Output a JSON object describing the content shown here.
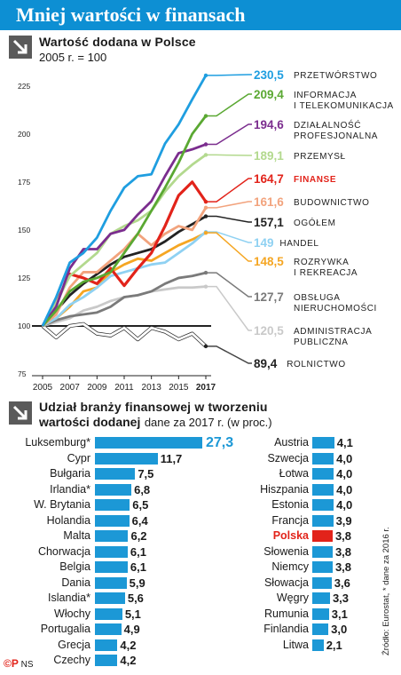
{
  "banner": {
    "title": "Mniej wartości w finansach"
  },
  "section1": {
    "title": "Wartość dodana w Polsce",
    "subtitle": "2005 r. = 100"
  },
  "section2": {
    "title_line1": "Udział branży finansowej w tworzeniu",
    "title_line2": "wartości dodanej",
    "subtitle": "dane za 2017 r. (w proc.)"
  },
  "chart_data": [
    {
      "type": "line",
      "title": "Wartość dodana w Polsce",
      "subtitle": "2005 r. = 100",
      "x": [
        2005,
        2006,
        2007,
        2008,
        2009,
        2010,
        2011,
        2012,
        2013,
        2014,
        2015,
        2016,
        2017
      ],
      "x_ticks": [
        2005,
        2007,
        2009,
        2011,
        2013,
        2015,
        2017
      ],
      "y_ticks": [
        75,
        100,
        125,
        150,
        175,
        200,
        225
      ],
      "ylim": [
        75,
        230
      ],
      "grid": false,
      "reference_line": 100,
      "series": [
        {
          "name": "Przetwórstwo",
          "value_label": "230,5",
          "label_lines": [
            "PRZETWÓRSTWO"
          ],
          "color": "#1f9ee0",
          "values": [
            100,
            115,
            133,
            138,
            146,
            160,
            172,
            178,
            179,
            195,
            205,
            218,
            230.5
          ]
        },
        {
          "name": "Informacja i telekomunikacja",
          "value_label": "209,4",
          "label_lines": [
            "INFORMACJA",
            "I TELEKOMUNIKACJA"
          ],
          "color": "#5aa832",
          "values": [
            100,
            108,
            118,
            123,
            125,
            128,
            138,
            148,
            160,
            172,
            185,
            200,
            209.4
          ]
        },
        {
          "name": "Działalność profesjonalna",
          "value_label": "194,6",
          "label_lines": [
            "DZIAŁALNOŚĆ",
            "PROFESJONALNA"
          ],
          "color": "#7b2d8e",
          "values": [
            100,
            110,
            130,
            140,
            140,
            148,
            150,
            158,
            165,
            178,
            190,
            192,
            194.6
          ]
        },
        {
          "name": "Przemysł",
          "value_label": "189,1",
          "label_lines": [
            "PRZEMYSŁ"
          ],
          "color": "#b3d98e",
          "values": [
            100,
            112,
            126,
            132,
            138,
            148,
            152,
            155,
            160,
            170,
            178,
            184,
            189.1
          ]
        },
        {
          "name": "Finanse",
          "value_label": "164,7",
          "label_lines": [
            "FINANSE"
          ],
          "color": "#e2231a",
          "highlight": true,
          "values": [
            100,
            112,
            127,
            125,
            122,
            130,
            121,
            130,
            138,
            152,
            168,
            175,
            164.7
          ]
        },
        {
          "name": "Budownictwo",
          "value_label": "161,6",
          "label_lines": [
            "BUDOWNICTWO"
          ],
          "color": "#f2a37d",
          "values": [
            100,
            106,
            120,
            128,
            128,
            134,
            140,
            148,
            142,
            148,
            152,
            150,
            161.6
          ]
        },
        {
          "name": "Ogółem",
          "value_label": "157,1",
          "label_lines": [
            "OGÓŁEM"
          ],
          "color": "#222222",
          "values": [
            100,
            108,
            116,
            122,
            127,
            132,
            136,
            138,
            140,
            144,
            149,
            153,
            157.1
          ]
        },
        {
          "name": "Handel",
          "value_label": "149",
          "label_lines": [
            "HANDEL"
          ],
          "color": "#8fd1f2",
          "values": [
            100,
            104,
            111,
            115,
            120,
            126,
            128,
            130,
            132,
            133,
            138,
            143,
            149
          ]
        },
        {
          "name": "Rozrywka i rekreacja",
          "value_label": "148,5",
          "label_lines": [
            "ROZRYWKA",
            "I REKREACJA"
          ],
          "color": "#f5a623",
          "values": [
            100,
            104,
            110,
            118,
            120,
            128,
            132,
            135,
            134,
            138,
            142,
            145,
            148.5
          ]
        },
        {
          "name": "Obsługa nieruchomości",
          "value_label": "127,7",
          "label_lines": [
            "OBSŁUGA",
            "NIERUCHOMOŚCI"
          ],
          "color": "#7a7a7a",
          "values": [
            100,
            103,
            105,
            106,
            107,
            110,
            115,
            116,
            118,
            122,
            125,
            126,
            127.7
          ]
        },
        {
          "name": "Administracja publiczna",
          "value_label": "120,5",
          "label_lines": [
            "ADMINISTRACJA",
            "PUBLICZNA"
          ],
          "color": "#c9c9c9",
          "values": [
            100,
            102,
            104,
            108,
            110,
            113,
            115,
            116,
            118,
            119,
            120,
            120,
            120.5
          ]
        },
        {
          "name": "Rolnictwo",
          "value_label": "89,4",
          "label_lines": [
            "ROLNICTWO"
          ],
          "color": "#ffffff",
          "outline": "#222222",
          "values": [
            100,
            94,
            100,
            101,
            96,
            95,
            99,
            93,
            99,
            97,
            93,
            96,
            89.4
          ]
        }
      ]
    },
    {
      "type": "bar",
      "title": "Udział branży finansowej w tworzeniu wartości dodanej",
      "subtitle": "dane za 2017 r. (w proc.)",
      "orientation": "horizontal",
      "xlim": [
        0,
        27.3
      ],
      "columns": [
        {
          "categories": [
            "Luksemburg*",
            "Cypr",
            "Bułgaria",
            "Irlandia*",
            "W. Brytania",
            "Holandia",
            "Malta",
            "Chorwacja",
            "Belgia",
            "Dania",
            "Islandia*",
            "Włochy",
            "Portugalia",
            "Grecja",
            "Czechy"
          ],
          "values": [
            27.3,
            11.7,
            7.5,
            6.8,
            6.5,
            6.4,
            6.2,
            6.1,
            6.1,
            5.9,
            5.6,
            5.1,
            4.9,
            4.2,
            4.2
          ],
          "value_labels": [
            "27,3",
            "11,7",
            "7,5",
            "6,8",
            "6,5",
            "6,4",
            "6,2",
            "6,1",
            "6,1",
            "5,9",
            "5,6",
            "5,1",
            "4,9",
            "4,2",
            "4,2"
          ]
        },
        {
          "categories": [
            "Austria",
            "Szwecja",
            "Łotwa",
            "Hiszpania",
            "Estonia",
            "Francja",
            "Polska",
            "Słowenia",
            "Niemcy",
            "Słowacja",
            "Węgry",
            "Rumunia",
            "Finlandia",
            "Litwa"
          ],
          "values": [
            4.1,
            4.0,
            4.0,
            4.0,
            4.0,
            3.9,
            3.8,
            3.8,
            3.8,
            3.6,
            3.3,
            3.1,
            3.0,
            2.1
          ],
          "value_labels": [
            "4,1",
            "4,0",
            "4,0",
            "4,0",
            "4,0",
            "3,9",
            "3,8",
            "3,8",
            "3,8",
            "3,6",
            "3,3",
            "3,1",
            "3,0",
            "2,1"
          ],
          "highlight": "Polska"
        }
      ]
    }
  ],
  "source_note": "Źródło: Eurostat, * dane za 2016 r.",
  "credit": {
    "logo": "©P",
    "author": "NS"
  },
  "colors": {
    "banner": "#0d8fd3",
    "bar": "#1c98d6",
    "highlight": "#e2231a",
    "icon": "#5a5a5a"
  }
}
